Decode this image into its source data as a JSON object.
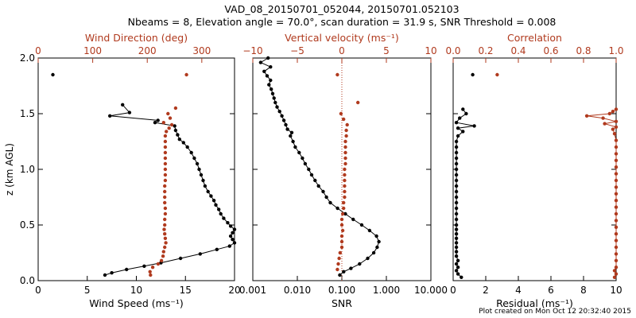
{
  "title_line1": "VAD_08_20150701_052044, 20150701.052103",
  "title_line2": "Nbeams = 8, Elevation angle = 70.0°, scan duration = 31.9 s, SNR Threshold = 0.008",
  "footer": "Plot created on Mon Oct 12 20:32:40 2015",
  "colors": {
    "primary": "#000000",
    "secondary": "#b03a1e"
  },
  "chart_data": [
    {
      "type": "scatter",
      "panel": "wind",
      "ylabel": "z (km AGL)",
      "ylim": [
        0.0,
        2.0
      ],
      "yticks": [
        "0.0",
        "0.5",
        "1.0",
        "1.5",
        "2.0"
      ],
      "ytick_values": [
        0.0,
        0.5,
        1.0,
        1.5,
        2.0
      ],
      "bottom_axis": {
        "label": "Wind Speed (ms⁻¹)",
        "lim": [
          0,
          20
        ],
        "ticks": [
          "0",
          "5",
          "10",
          "15",
          "20"
        ],
        "tick_values": [
          0,
          5,
          10,
          15,
          20
        ]
      },
      "top_axis": {
        "label": "Wind Direction (deg)",
        "lim": [
          0,
          360
        ],
        "ticks": [
          "0",
          "100",
          "200",
          "300"
        ],
        "tick_values": [
          0,
          100,
          200,
          300
        ]
      },
      "series": [
        {
          "axis": "bottom",
          "connected": true,
          "color": "primary",
          "points": [
            [
              6.8,
              0.05
            ],
            [
              7.5,
              0.07
            ],
            [
              9.0,
              0.1
            ],
            [
              10.8,
              0.13
            ],
            [
              12.5,
              0.16
            ],
            [
              14.5,
              0.2
            ],
            [
              16.5,
              0.24
            ],
            [
              18.2,
              0.28
            ],
            [
              19.5,
              0.31
            ],
            [
              20.0,
              0.34
            ],
            [
              19.8,
              0.37
            ],
            [
              19.6,
              0.4
            ],
            [
              19.8,
              0.43
            ],
            [
              20.0,
              0.46
            ],
            [
              19.6,
              0.49
            ],
            [
              19.3,
              0.52
            ],
            [
              18.9,
              0.56
            ],
            [
              18.6,
              0.6
            ],
            [
              18.4,
              0.64
            ],
            [
              18.1,
              0.68
            ],
            [
              17.9,
              0.72
            ],
            [
              17.6,
              0.76
            ],
            [
              17.3,
              0.8
            ],
            [
              17.0,
              0.85
            ],
            [
              16.8,
              0.9
            ],
            [
              16.6,
              0.95
            ],
            [
              16.4,
              1.0
            ],
            [
              16.2,
              1.05
            ],
            [
              15.9,
              1.1
            ],
            [
              15.6,
              1.15
            ],
            [
              15.2,
              1.2
            ],
            [
              14.8,
              1.24
            ],
            [
              14.4,
              1.27
            ],
            [
              14.2,
              1.31
            ],
            [
              14.0,
              1.35
            ],
            [
              13.9,
              1.39
            ],
            [
              11.9,
              1.42
            ],
            [
              12.2,
              1.44
            ],
            [
              7.3,
              1.48
            ],
            [
              9.3,
              1.51
            ],
            [
              8.6,
              1.58
            ]
          ]
        },
        {
          "axis": "top",
          "connected": false,
          "color": "secondary",
          "points": [
            [
              206,
              0.05
            ],
            [
              205,
              0.08
            ],
            [
              210,
              0.12
            ],
            [
              220,
              0.15
            ],
            [
              226,
              0.18
            ],
            [
              229,
              0.22
            ],
            [
              230,
              0.26
            ],
            [
              232,
              0.3
            ],
            [
              234,
              0.34
            ],
            [
              233,
              0.38
            ],
            [
              232,
              0.42
            ],
            [
              231,
              0.46
            ],
            [
              232,
              0.5
            ],
            [
              232,
              0.55
            ],
            [
              233,
              0.6
            ],
            [
              233,
              0.65
            ],
            [
              232,
              0.7
            ],
            [
              232,
              0.75
            ],
            [
              232,
              0.8
            ],
            [
              232,
              0.85
            ],
            [
              233,
              0.9
            ],
            [
              233,
              0.95
            ],
            [
              233,
              1.0
            ],
            [
              233,
              1.05
            ],
            [
              233,
              1.1
            ],
            [
              233,
              1.15
            ],
            [
              233,
              1.2
            ],
            [
              233,
              1.25
            ],
            [
              233,
              1.3
            ],
            [
              235,
              1.34
            ],
            [
              240,
              1.37
            ],
            [
              245,
              1.4
            ],
            [
              230,
              1.42
            ],
            [
              242,
              1.46
            ],
            [
              238,
              1.5
            ],
            [
              252,
              1.55
            ]
          ]
        },
        {
          "axis": "bottom",
          "connected": false,
          "color": "primary",
          "points": [
            [
              1.5,
              1.85
            ]
          ]
        },
        {
          "axis": "top",
          "connected": false,
          "color": "secondary",
          "points": [
            [
              272,
              1.85
            ]
          ]
        }
      ]
    },
    {
      "type": "scatter",
      "panel": "snr",
      "ylim": [
        0.0,
        2.0
      ],
      "bottom_axis": {
        "label": "SNR",
        "log": true,
        "lim": [
          0.001,
          10
        ],
        "ticks": [
          "0.001",
          "0.010",
          "0.100",
          "1.000",
          "10.000"
        ],
        "tick_values": [
          0.001,
          0.01,
          0.1,
          1.0,
          10.0
        ]
      },
      "top_axis": {
        "label": "Vertical velocity (ms⁻¹)",
        "lim": [
          -10,
          10
        ],
        "ticks": [
          "−10",
          "−5",
          "0",
          "5",
          "10"
        ],
        "tick_values": [
          -10,
          -5,
          0,
          5,
          10
        ]
      },
      "reference_line": {
        "axis": "top",
        "value": 0,
        "style": "dotted",
        "color": "secondary"
      },
      "series": [
        {
          "axis": "bottom",
          "connected": true,
          "color": "primary",
          "points": [
            [
              0.09,
              0.05
            ],
            [
              0.11,
              0.08
            ],
            [
              0.16,
              0.11
            ],
            [
              0.25,
              0.15
            ],
            [
              0.38,
              0.2
            ],
            [
              0.52,
              0.25
            ],
            [
              0.62,
              0.3
            ],
            [
              0.68,
              0.35
            ],
            [
              0.6,
              0.4
            ],
            [
              0.42,
              0.45
            ],
            [
              0.28,
              0.5
            ],
            [
              0.18,
              0.55
            ],
            [
              0.12,
              0.6
            ],
            [
              0.08,
              0.65
            ],
            [
              0.055,
              0.7
            ],
            [
              0.045,
              0.75
            ],
            [
              0.038,
              0.8
            ],
            [
              0.03,
              0.85
            ],
            [
              0.025,
              0.9
            ],
            [
              0.021,
              0.95
            ],
            [
              0.018,
              1.0
            ],
            [
              0.015,
              1.05
            ],
            [
              0.013,
              1.1
            ],
            [
              0.011,
              1.15
            ],
            [
              0.009,
              1.2
            ],
            [
              0.008,
              1.25
            ],
            [
              0.007,
              1.3
            ],
            [
              0.0075,
              1.33
            ],
            [
              0.006,
              1.36
            ],
            [
              0.0055,
              1.4
            ],
            [
              0.005,
              1.44
            ],
            [
              0.0045,
              1.48
            ],
            [
              0.004,
              1.52
            ],
            [
              0.0035,
              1.56
            ],
            [
              0.0032,
              1.6
            ],
            [
              0.003,
              1.64
            ],
            [
              0.0028,
              1.68
            ],
            [
              0.0026,
              1.72
            ],
            [
              0.0023,
              1.76
            ],
            [
              0.0025,
              1.8
            ],
            [
              0.0021,
              1.84
            ],
            [
              0.0018,
              1.88
            ],
            [
              0.0025,
              1.92
            ],
            [
              0.0015,
              1.96
            ],
            [
              0.0022,
              2.0
            ]
          ]
        },
        {
          "axis": "top",
          "connected": false,
          "color": "secondary",
          "points": [
            [
              -0.5,
              0.1
            ],
            [
              -0.4,
              0.15
            ],
            [
              -0.3,
              0.2
            ],
            [
              -0.2,
              0.25
            ],
            [
              0.0,
              0.3
            ],
            [
              0.0,
              0.35
            ],
            [
              0.0,
              0.4
            ],
            [
              0.1,
              0.45
            ],
            [
              0.0,
              0.5
            ],
            [
              0.0,
              0.55
            ],
            [
              0.1,
              0.6
            ],
            [
              0.2,
              0.65
            ],
            [
              0.2,
              0.7
            ],
            [
              0.3,
              0.75
            ],
            [
              0.3,
              0.8
            ],
            [
              0.3,
              0.85
            ],
            [
              0.3,
              0.9
            ],
            [
              0.3,
              0.95
            ],
            [
              0.3,
              1.0
            ],
            [
              0.4,
              1.05
            ],
            [
              0.4,
              1.1
            ],
            [
              0.4,
              1.15
            ],
            [
              0.4,
              1.2
            ],
            [
              0.4,
              1.25
            ],
            [
              0.5,
              1.3
            ],
            [
              0.5,
              1.35
            ],
            [
              0.6,
              1.4
            ],
            [
              0.2,
              1.45
            ],
            [
              -0.1,
              1.5
            ],
            [
              1.8,
              1.6
            ],
            [
              -0.5,
              1.85
            ]
          ]
        }
      ]
    },
    {
      "type": "scatter",
      "panel": "residual",
      "ylim": [
        0.0,
        2.0
      ],
      "bottom_axis": {
        "label": "Residual (ms⁻¹)",
        "lim": [
          0,
          10
        ],
        "ticks": [
          "0",
          "2",
          "4",
          "6",
          "8",
          "10"
        ],
        "tick_values": [
          0,
          2,
          4,
          6,
          8,
          10
        ]
      },
      "top_axis": {
        "label": "Correlation",
        "lim": [
          0.0,
          1.0
        ],
        "ticks": [
          "0.0",
          "0.2",
          "0.4",
          "0.6",
          "0.8",
          "1.0"
        ],
        "tick_values": [
          0.0,
          0.2,
          0.4,
          0.6,
          0.8,
          1.0
        ]
      },
      "series": [
        {
          "axis": "bottom",
          "connected": true,
          "color": "primary",
          "points": [
            [
              0.5,
              0.03
            ],
            [
              0.3,
              0.06
            ],
            [
              0.2,
              0.09
            ],
            [
              0.3,
              0.12
            ],
            [
              0.2,
              0.15
            ],
            [
              0.3,
              0.18
            ],
            [
              0.2,
              0.22
            ],
            [
              0.2,
              0.26
            ],
            [
              0.2,
              0.3
            ],
            [
              0.2,
              0.34
            ],
            [
              0.2,
              0.38
            ],
            [
              0.2,
              0.42
            ],
            [
              0.2,
              0.46
            ],
            [
              0.2,
              0.5
            ],
            [
              0.2,
              0.55
            ],
            [
              0.2,
              0.6
            ],
            [
              0.2,
              0.65
            ],
            [
              0.2,
              0.7
            ],
            [
              0.2,
              0.75
            ],
            [
              0.2,
              0.8
            ],
            [
              0.2,
              0.85
            ],
            [
              0.2,
              0.9
            ],
            [
              0.2,
              0.95
            ],
            [
              0.2,
              1.0
            ],
            [
              0.2,
              1.05
            ],
            [
              0.2,
              1.1
            ],
            [
              0.2,
              1.15
            ],
            [
              0.2,
              1.2
            ],
            [
              0.2,
              1.25
            ],
            [
              0.3,
              1.3
            ],
            [
              0.6,
              1.34
            ],
            [
              0.3,
              1.37
            ],
            [
              1.3,
              1.39
            ],
            [
              0.2,
              1.42
            ],
            [
              0.4,
              1.46
            ],
            [
              0.8,
              1.5
            ],
            [
              0.6,
              1.54
            ]
          ]
        },
        {
          "axis": "top",
          "connected": true,
          "color": "secondary",
          "points": [
            [
              0.99,
              0.03
            ],
            [
              1.0,
              0.06
            ],
            [
              0.99,
              0.09
            ],
            [
              1.0,
              0.12
            ],
            [
              1.0,
              0.18
            ],
            [
              1.0,
              0.24
            ],
            [
              1.0,
              0.3
            ],
            [
              1.0,
              0.36
            ],
            [
              1.0,
              0.42
            ],
            [
              1.0,
              0.48
            ],
            [
              1.0,
              0.54
            ],
            [
              1.0,
              0.6
            ],
            [
              1.0,
              0.66
            ],
            [
              1.0,
              0.72
            ],
            [
              1.0,
              0.78
            ],
            [
              1.0,
              0.84
            ],
            [
              1.0,
              0.9
            ],
            [
              1.0,
              0.96
            ],
            [
              1.0,
              1.02
            ],
            [
              1.0,
              1.08
            ],
            [
              1.0,
              1.14
            ],
            [
              1.0,
              1.2
            ],
            [
              1.0,
              1.26
            ],
            [
              0.99,
              1.32
            ],
            [
              0.98,
              1.36
            ],
            [
              1.0,
              1.38
            ],
            [
              0.93,
              1.41
            ],
            [
              1.0,
              1.43
            ],
            [
              0.92,
              1.46
            ],
            [
              0.82,
              1.48
            ],
            [
              0.96,
              1.5
            ],
            [
              0.98,
              1.52
            ],
            [
              1.0,
              1.54
            ]
          ]
        },
        {
          "axis": "bottom",
          "connected": false,
          "color": "primary",
          "points": [
            [
              1.2,
              1.85
            ]
          ]
        },
        {
          "axis": "top",
          "connected": false,
          "color": "secondary",
          "points": [
            [
              0.27,
              1.85
            ]
          ]
        }
      ]
    }
  ]
}
